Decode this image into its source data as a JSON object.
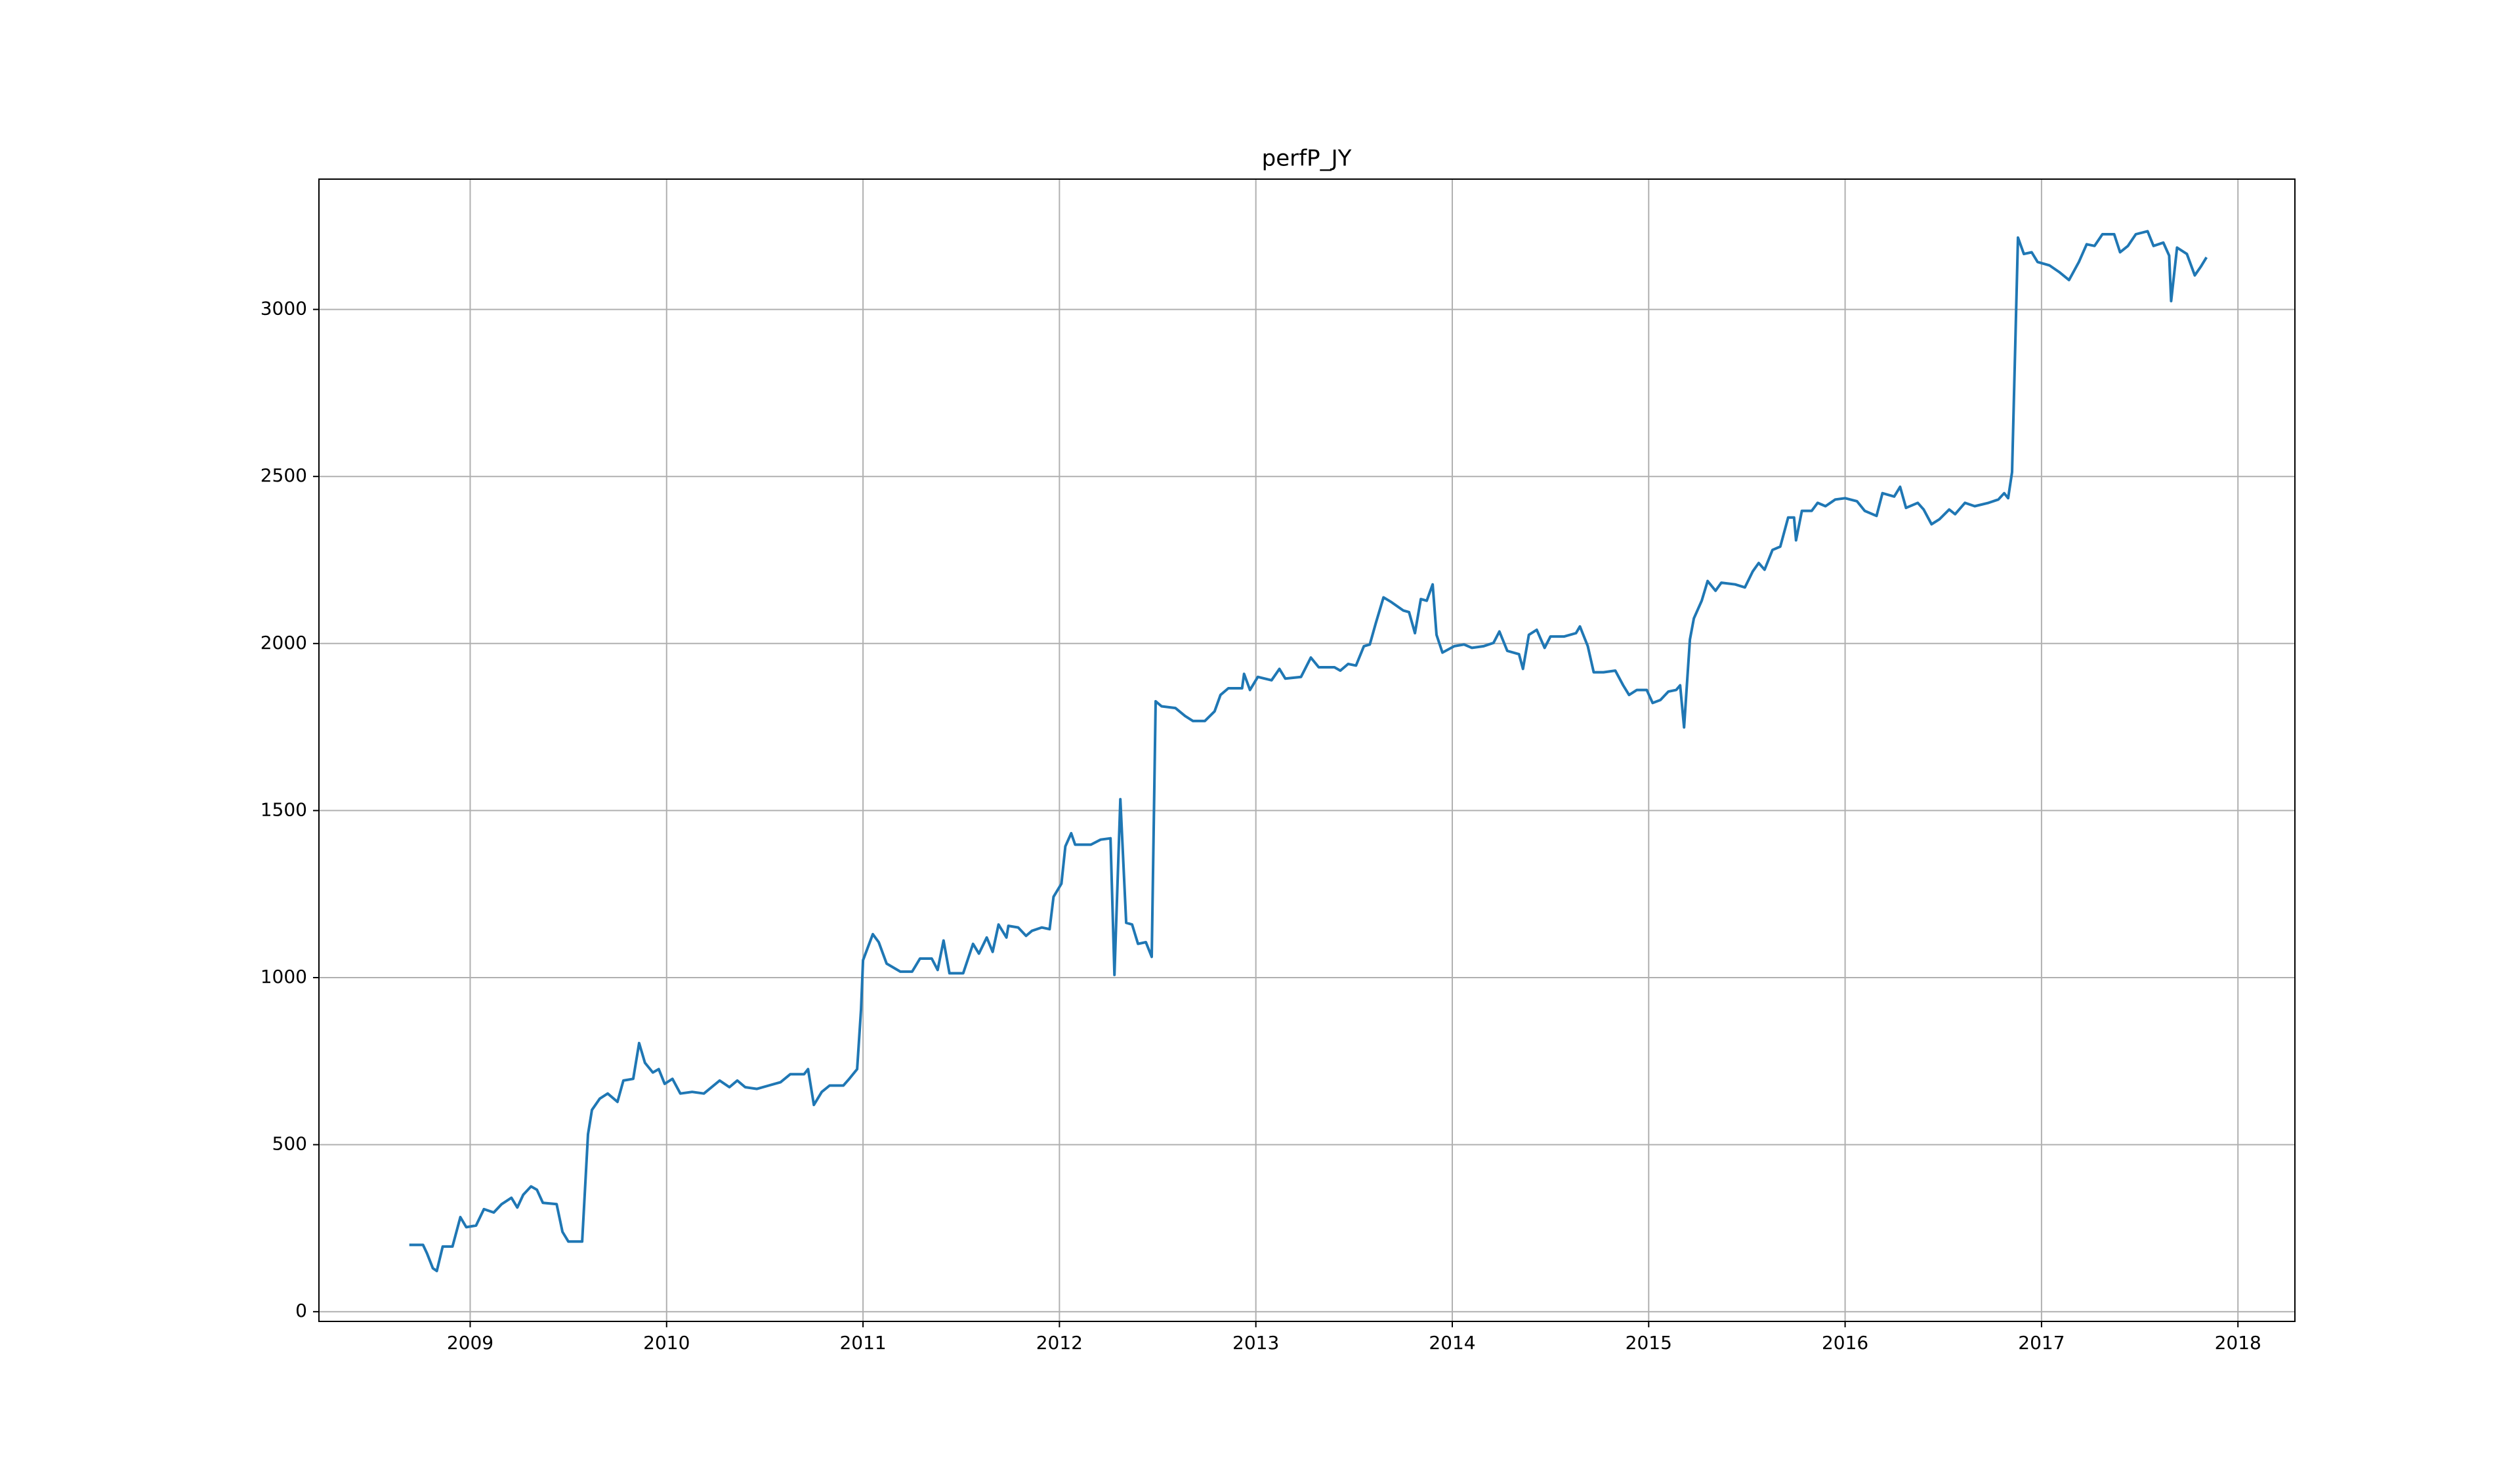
{
  "chart_data": {
    "type": "line",
    "title": "perfP_JY",
    "xlim": [
      2008.23,
      2018.29
    ],
    "xticks": [
      2009,
      2010,
      2011,
      2012,
      2013,
      2014,
      2015,
      2016,
      2017,
      2018
    ],
    "ylim": [
      -29,
      3390
    ],
    "yticks": [
      0,
      500,
      1000,
      1500,
      2000,
      2500,
      3000
    ],
    "grid": true,
    "series": [
      {
        "color": "#1f77b4",
        "x": [
          2008.69,
          2008.76,
          2008.78,
          2008.81,
          2008.83,
          2008.86,
          2008.91,
          2008.95,
          2008.98,
          2009.03,
          2009.07,
          2009.12,
          2009.16,
          2009.21,
          2009.24,
          2009.27,
          2009.31,
          2009.34,
          2009.37,
          2009.44,
          2009.47,
          2009.5,
          2009.57,
          2009.6,
          2009.62,
          2009.66,
          2009.7,
          2009.75,
          2009.78,
          2009.83,
          2009.86,
          2009.89,
          2009.93,
          2009.96,
          2009.99,
          2010.03,
          2010.07,
          2010.13,
          2010.19,
          2010.27,
          2010.32,
          2010.36,
          2010.4,
          2010.46,
          2010.52,
          2010.58,
          2010.63,
          2010.7,
          2010.72,
          2010.75,
          2010.79,
          2010.83,
          2010.9,
          2010.93,
          2010.97,
          2010.99,
          2011.0,
          2011.05,
          2011.08,
          2011.12,
          2011.19,
          2011.25,
          2011.29,
          2011.35,
          2011.38,
          2011.41,
          2011.44,
          2011.51,
          2011.56,
          2011.59,
          2011.63,
          2011.66,
          2011.69,
          2011.73,
          2011.74,
          2011.79,
          2011.83,
          2011.86,
          2011.91,
          2011.95,
          2011.97,
          2012.01,
          2012.03,
          2012.06,
          2012.08,
          2012.16,
          2012.21,
          2012.26,
          2012.28,
          2012.31,
          2012.34,
          2012.37,
          2012.4,
          2012.44,
          2012.47,
          2012.49,
          2012.52,
          2012.59,
          2012.64,
          2012.68,
          2012.74,
          2012.79,
          2012.82,
          2012.86,
          2012.93,
          2012.94,
          2012.97,
          2013.01,
          2013.08,
          2013.12,
          2013.15,
          2013.23,
          2013.28,
          2013.32,
          2013.4,
          2013.43,
          2013.47,
          2013.51,
          2013.55,
          2013.58,
          2013.61,
          2013.65,
          2013.69,
          2013.75,
          2013.78,
          2013.81,
          2013.84,
          2013.87,
          2013.9,
          2013.92,
          2013.95,
          2014.01,
          2014.06,
          2014.1,
          2014.16,
          2014.21,
          2014.24,
          2014.28,
          2014.34,
          2014.36,
          2014.39,
          2014.43,
          2014.47,
          2014.5,
          2014.57,
          2014.63,
          2014.65,
          2014.69,
          2014.72,
          2014.77,
          2014.83,
          2014.87,
          2014.9,
          2014.94,
          2014.99,
          2015.02,
          2015.06,
          2015.1,
          2015.14,
          2015.16,
          2015.18,
          2015.21,
          2015.23,
          2015.27,
          2015.3,
          2015.34,
          2015.37,
          2015.44,
          2015.49,
          2015.53,
          2015.56,
          2015.59,
          2015.63,
          2015.67,
          2015.71,
          2015.74,
          2015.75,
          2015.78,
          2015.83,
          2015.86,
          2015.9,
          2015.95,
          2016.0,
          2016.06,
          2016.1,
          2016.16,
          2016.19,
          2016.25,
          2016.28,
          2016.31,
          2016.37,
          2016.4,
          2016.44,
          2016.48,
          2016.53,
          2016.56,
          2016.61,
          2016.66,
          2016.73,
          2016.78,
          2016.81,
          2016.83,
          2016.85,
          2016.88,
          2016.91,
          2016.95,
          2016.98,
          2017.04,
          2017.09,
          2017.14,
          2017.19,
          2017.23,
          2017.27,
          2017.31,
          2017.37,
          2017.4,
          2017.44,
          2017.48,
          2017.54,
          2017.57,
          2017.62,
          2017.65,
          2017.66,
          2017.69,
          2017.74,
          2017.78,
          2017.81,
          2017.84
        ],
        "values": [
          200,
          200,
          175,
          130,
          122,
          195,
          195,
          283,
          253,
          258,
          307,
          297,
          322,
          341,
          312,
          350,
          375,
          365,
          326,
          322,
          239,
          210,
          210,
          531,
          604,
          638,
          653,
          628,
          692,
          697,
          804,
          745,
          716,
          726,
          682,
          697,
          653,
          658,
          653,
          692,
          672,
          692,
          672,
          667,
          677,
          687,
          711,
          711,
          726,
          619,
          658,
          677,
          677,
          697,
          726,
          906,
          1052,
          1130,
          1106,
          1042,
          1018,
          1018,
          1057,
          1057,
          1023,
          1111,
          1013,
          1013,
          1101,
          1072,
          1120,
          1077,
          1159,
          1120,
          1155,
          1150,
          1125,
          1140,
          1150,
          1145,
          1242,
          1281,
          1393,
          1432,
          1398,
          1398,
          1413,
          1417,
          1008,
          1534,
          1164,
          1159,
          1101,
          1106,
          1062,
          1827,
          1812,
          1807,
          1783,
          1768,
          1768,
          1797,
          1846,
          1866,
          1866,
          1909,
          1861,
          1900,
          1890,
          1924,
          1895,
          1900,
          1958,
          1929,
          1929,
          1919,
          1939,
          1934,
          1992,
          1997,
          2060,
          2138,
          2124,
          2099,
          2094,
          2031,
          2133,
          2128,
          2177,
          2026,
          1973,
          1992,
          1997,
          1987,
          1992,
          2002,
          2036,
          1978,
          1968,
          1924,
          2026,
          2041,
          1987,
          2021,
          2021,
          2031,
          2051,
          1992,
          1914,
          1914,
          1919,
          1875,
          1846,
          1861,
          1861,
          1822,
          1831,
          1856,
          1861,
          1875,
          1749,
          2012,
          2075,
          2128,
          2187,
          2158,
          2182,
          2177,
          2168,
          2216,
          2241,
          2221,
          2280,
          2290,
          2377,
          2377,
          2309,
          2397,
          2397,
          2421,
          2411,
          2431,
          2435,
          2426,
          2397,
          2382,
          2450,
          2440,
          2469,
          2406,
          2421,
          2401,
          2357,
          2372,
          2401,
          2387,
          2421,
          2411,
          2421,
          2431,
          2450,
          2435,
          2513,
          3215,
          3166,
          3171,
          3142,
          3132,
          3112,
          3088,
          3142,
          3195,
          3190,
          3225,
          3225,
          3171,
          3190,
          3225,
          3234,
          3190,
          3200,
          3161,
          3025,
          3185,
          3166,
          3102,
          3127,
          3156
        ]
      }
    ]
  }
}
